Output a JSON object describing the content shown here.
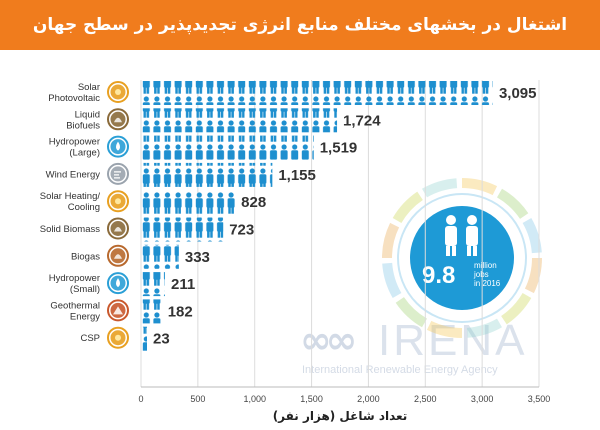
{
  "header": {
    "title": "اشتغال در بخشهای مختلف منابع انرژی تجدیدپذیر در سطح جهان"
  },
  "watermark": {
    "logo": "∞∞",
    "name": "IRENA",
    "subtitle": "International Renewable Energy Agency"
  },
  "inset": {
    "value": "9.8",
    "line1": "million",
    "line2": "jobs",
    "line3": "in 2016"
  },
  "colors": {
    "header": "#f07c1d",
    "icon_fill": "#1e8fcf",
    "value_text": "#333333",
    "icon_badge": "#e8a021"
  },
  "chart_data": {
    "type": "bar",
    "orientation": "horizontal",
    "categories": [
      "Solar Photovoltaic",
      "Liquid Biofuels",
      "Hydropower (Large)",
      "Wind Energy",
      "Solar Heating/ Cooling",
      "Solid Biomass",
      "Biogas",
      "Hydropower (Small)",
      "Geothermal Energy",
      "CSP"
    ],
    "values": [
      3095,
      1724,
      1519,
      1155,
      828,
      723,
      333,
      211,
      182,
      23
    ],
    "value_labels": [
      "3,095",
      "1,724",
      "1,519",
      "1,155",
      "828",
      "723",
      "333",
      "211",
      "182",
      "23"
    ],
    "category_icons": [
      "sun-icon",
      "leaf-icon",
      "water-drop-icon",
      "wind-icon",
      "sun-icon",
      "leaf-icon",
      "leaf-icon",
      "water-drop-icon",
      "mountain-icon",
      "sun-icon"
    ],
    "icon_colors": [
      "#e8a021",
      "#8a6a3a",
      "#2a9fd6",
      "#9aa3ad",
      "#e8a021",
      "#8a6a3a",
      "#b8692e",
      "#2a9fd6",
      "#c9582c",
      "#e8a021"
    ],
    "xlim": [
      0,
      3500
    ],
    "xticks": [
      0,
      500,
      1000,
      1500,
      2000,
      2500,
      3000,
      3500
    ],
    "xtick_labels": [
      "0",
      "500",
      "1,000",
      "1,500",
      "2,000",
      "2,500",
      "3,000",
      "3,500"
    ],
    "xlabel": "تعداد شاغل (هزار نفر)",
    "grid": true
  }
}
